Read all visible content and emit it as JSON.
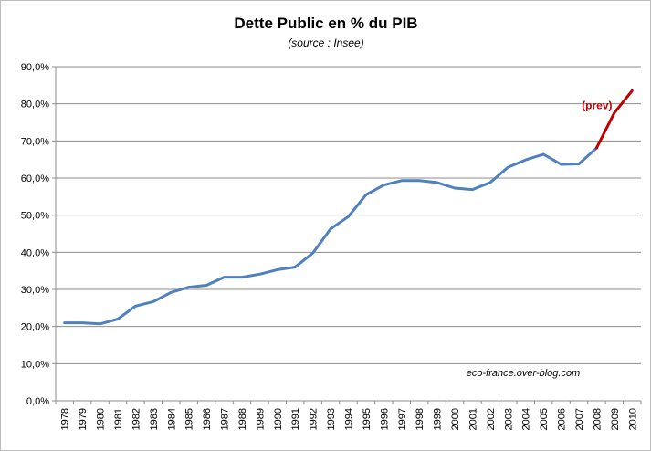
{
  "chart_data": {
    "type": "line",
    "title": "Dette Public en % du PIB",
    "subtitle": "(source : Insee)",
    "xlabel": "",
    "ylabel": "",
    "ylim": [
      0,
      90
    ],
    "ytick_step": 10,
    "ytick_format": "percent_comma_1dp",
    "grid": true,
    "x": [
      "1978",
      "1979",
      "1980",
      "1981",
      "1982",
      "1983",
      "1984",
      "1985",
      "1986",
      "1987",
      "1988",
      "1989",
      "1990",
      "1991",
      "1992",
      "1993",
      "1994",
      "1995",
      "1996",
      "1997",
      "1998",
      "1999",
      "2000",
      "2001",
      "2002",
      "2003",
      "2004",
      "2005",
      "2006",
      "2007",
      "2008",
      "2009",
      "2010"
    ],
    "series": [
      {
        "color": "#4f81bd",
        "x": [
          "1978",
          "1979",
          "1980",
          "1981",
          "1982",
          "1983",
          "1984",
          "1985",
          "1986",
          "1987",
          "1988",
          "1989",
          "1990",
          "1991",
          "1992",
          "1993",
          "1994",
          "1995",
          "1996",
          "1997",
          "1998",
          "1999",
          "2000",
          "2001",
          "2002",
          "2003",
          "2004",
          "2005",
          "2006",
          "2007",
          "2008"
        ],
        "values": [
          21.0,
          21.0,
          20.7,
          22.0,
          25.5,
          26.7,
          29.2,
          30.6,
          31.1,
          33.3,
          33.3,
          34.1,
          35.3,
          36.0,
          39.8,
          46.3,
          49.6,
          55.5,
          58.1,
          59.3,
          59.3,
          58.8,
          57.3,
          56.9,
          58.8,
          62.9,
          64.9,
          66.4,
          63.7,
          63.8,
          68.1
        ]
      },
      {
        "color": "#c00000",
        "x": [
          "2008",
          "2009",
          "2010"
        ],
        "values": [
          68.1,
          77.6,
          83.5
        ]
      }
    ],
    "annotations": [
      {
        "text": "(prev)",
        "color": "#c00000",
        "x": "2009",
        "y": 79.5
      }
    ],
    "watermark": "eco-france.over-blog.com"
  }
}
